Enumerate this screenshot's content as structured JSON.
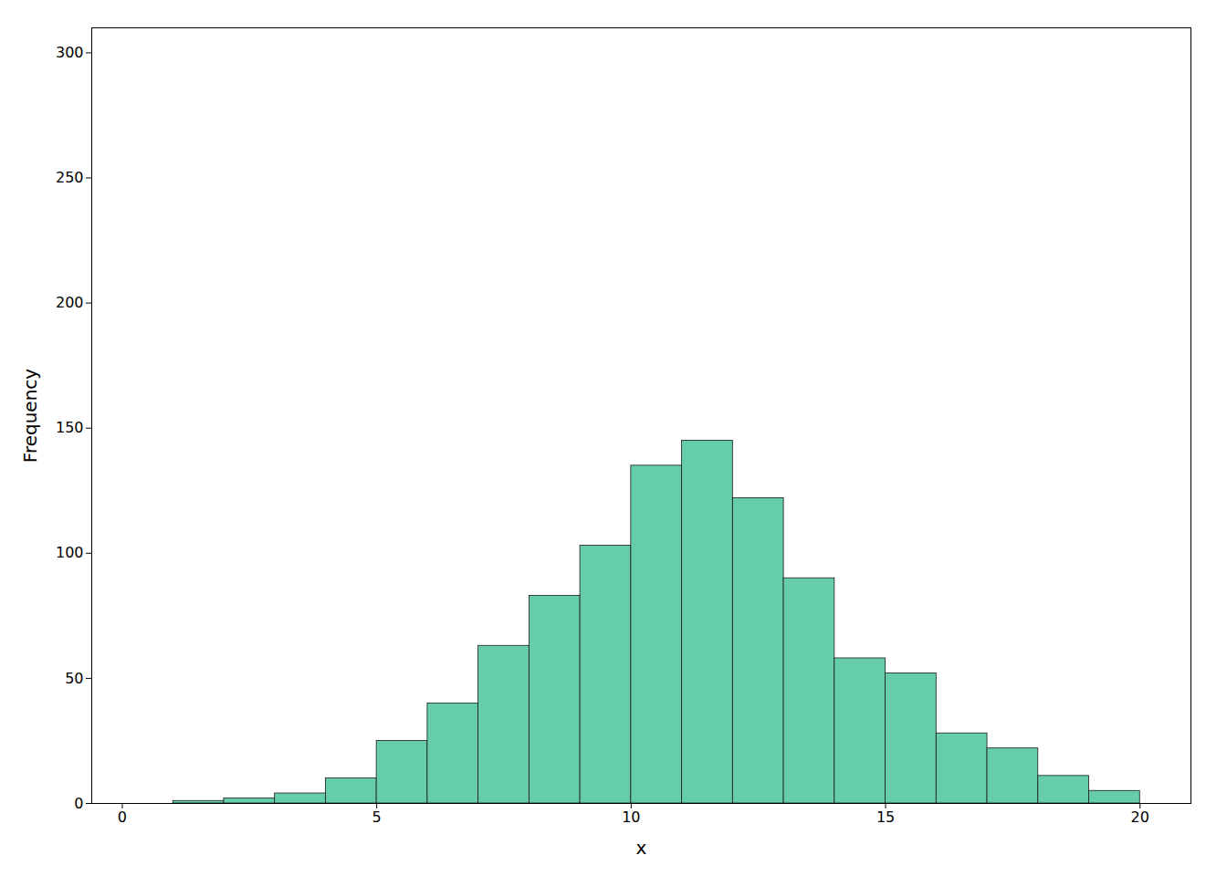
{
  "chart_data": {
    "type": "histogram",
    "bins": [
      1,
      2,
      3,
      4,
      5,
      6,
      7,
      8,
      9,
      10,
      11,
      12,
      13,
      14,
      15,
      16,
      17,
      18,
      19,
      20
    ],
    "values": [
      1,
      2,
      4,
      10,
      25,
      40,
      63,
      83,
      103,
      135,
      145,
      122,
      90,
      58,
      52,
      28,
      22,
      11,
      5
    ],
    "color": "#66CDAA",
    "xlabel": "x",
    "ylabel": "Frequency",
    "xlim": [
      -0.6,
      21.0
    ],
    "ylim": [
      0,
      310
    ],
    "xticks": [
      0,
      5,
      10,
      15,
      20
    ],
    "yticks": [
      0,
      50,
      100,
      150,
      200,
      250,
      300
    ],
    "grid": false
  }
}
